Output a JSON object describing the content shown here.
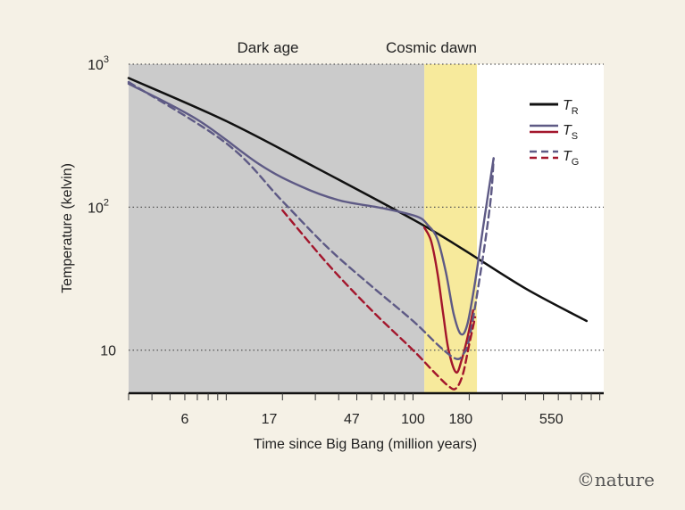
{
  "chart_data": {
    "type": "line",
    "regions": [
      {
        "name": "Dark age",
        "x_range": [
          3,
          115
        ],
        "color": "#cbcbcb"
      },
      {
        "name": "Cosmic dawn",
        "x_range": [
          115,
          220
        ],
        "color": "#f7ea9c"
      }
    ],
    "xlabel": "Time since Big Bang (million years)",
    "ylabel": "Temperature (kelvin)",
    "x_scale": "log",
    "y_scale": "log",
    "xlim": [
      3,
      1050
    ],
    "ylim": [
      5,
      1000
    ],
    "x_ticks": [
      6,
      17,
      47,
      100,
      180,
      550
    ],
    "y_ticks": [
      {
        "value": 10,
        "base": "10",
        "exp": ""
      },
      {
        "value": 100,
        "base": "10",
        "exp": "2"
      },
      {
        "value": 1000,
        "base": "10",
        "exp": "3"
      }
    ],
    "grid": "dotted horizontal at y ticks",
    "legend_position": "top-right",
    "legend": [
      {
        "symbol": "T",
        "sub": "R",
        "style": "solid",
        "colors": [
          "#111111"
        ]
      },
      {
        "symbol": "T",
        "sub": "S",
        "style": "solid",
        "colors": [
          "#5e5a85",
          "#a3162c"
        ]
      },
      {
        "symbol": "T",
        "sub": "G",
        "style": "dashed",
        "colors": [
          "#5e5a85",
          "#a3162c"
        ]
      }
    ],
    "series": [
      {
        "key": "TR",
        "color": "#111111",
        "style": "solid",
        "points": [
          [
            3,
            800
          ],
          [
            10,
            400
          ],
          [
            30,
            190
          ],
          [
            100,
            82
          ],
          [
            180,
            52
          ],
          [
            400,
            27
          ],
          [
            850,
            16
          ]
        ]
      },
      {
        "key": "TS_blue",
        "color": "#5e5a85",
        "style": "solid",
        "points": [
          [
            3,
            730
          ],
          [
            7,
            410
          ],
          [
            15,
            200
          ],
          [
            25,
            140
          ],
          [
            40,
            112
          ],
          [
            70,
            98
          ],
          [
            105,
            86
          ],
          [
            120,
            75
          ],
          [
            135,
            60
          ],
          [
            150,
            35
          ],
          [
            165,
            18
          ],
          [
            180,
            13
          ],
          [
            195,
            15
          ],
          [
            215,
            30
          ],
          [
            240,
            80
          ],
          [
            270,
            220
          ]
        ]
      },
      {
        "key": "TS_red",
        "color": "#a3162c",
        "style": "solid",
        "points": [
          [
            115,
            72
          ],
          [
            125,
            58
          ],
          [
            135,
            35
          ],
          [
            145,
            18
          ],
          [
            155,
            10
          ],
          [
            170,
            7
          ],
          [
            182,
            8.5
          ],
          [
            195,
            12
          ],
          [
            210,
            19
          ]
        ]
      },
      {
        "key": "TG_blue",
        "color": "#5e5a85",
        "style": "dashed",
        "points": [
          [
            3,
            750
          ],
          [
            10,
            280
          ],
          [
            20,
            110
          ],
          [
            35,
            52
          ],
          [
            60,
            28
          ],
          [
            100,
            16
          ],
          [
            140,
            10.5
          ],
          [
            170,
            8.7
          ],
          [
            185,
            9.3
          ],
          [
            200,
            12
          ],
          [
            230,
            35
          ],
          [
            260,
            110
          ],
          [
            270,
            220
          ]
        ]
      },
      {
        "key": "TG_red",
        "color": "#a3162c",
        "style": "dashed",
        "points": [
          [
            20,
            95
          ],
          [
            35,
            40
          ],
          [
            60,
            19
          ],
          [
            100,
            10
          ],
          [
            130,
            7
          ],
          [
            155,
            5.6
          ],
          [
            170,
            5.4
          ],
          [
            185,
            6.8
          ],
          [
            200,
            11
          ],
          [
            215,
            17
          ]
        ]
      }
    ]
  },
  "credit": {
    "copyright": "©",
    "brand": "nature"
  }
}
